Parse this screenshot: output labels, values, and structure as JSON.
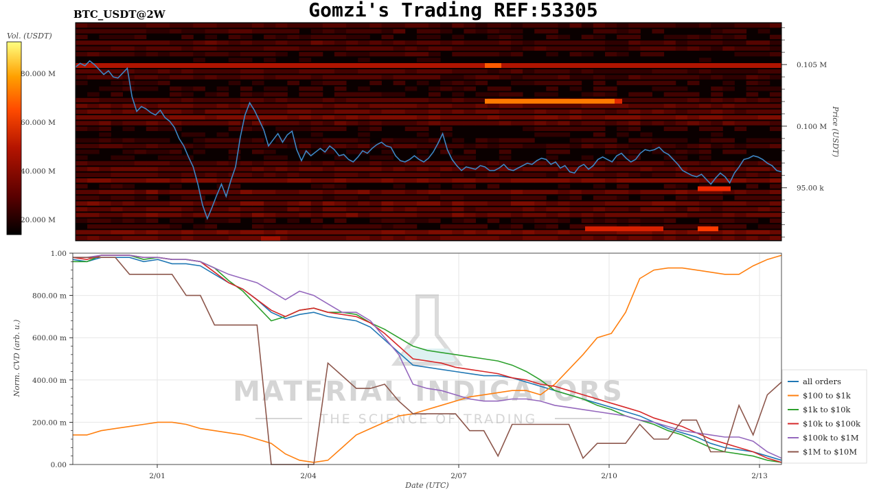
{
  "header": {
    "title": "Gomzi's Trading REF:53305",
    "pair_label": "BTC_USDT@2W"
  },
  "watermark": {
    "brand": "MATERIAL INDICATORS",
    "tagline": "THE SCIENCE OF TRADING"
  },
  "colorbar": {
    "label": "Vol. (USDT)",
    "ticks": [
      "20.000 M",
      "40.000 M",
      "60.000 M",
      "80.000 M"
    ]
  },
  "chart_data": [
    {
      "type": "heatmap",
      "title": "BTC_USDT@2W",
      "ylabel": "Price (USDT)",
      "ylim": [
        90700,
        108400
      ],
      "y_ticks": [
        "95.00 k",
        "0.100 M",
        "0.105 M"
      ],
      "colorscale": [
        "#000000",
        "#5a0000",
        "#b41400",
        "#ff4b00",
        "#ffa000",
        "#ffff80"
      ],
      "price_series": {
        "name": "price",
        "color": "#3d87c6",
        "values": [
          104800,
          105100,
          104900,
          105300,
          105000,
          104600,
          104200,
          104500,
          104000,
          103900,
          104300,
          104700,
          102400,
          101200,
          101600,
          101400,
          101100,
          100900,
          101300,
          100700,
          100400,
          99900,
          99000,
          98400,
          97500,
          96700,
          95300,
          93600,
          92500,
          93400,
          94400,
          95300,
          94300,
          95600,
          96700,
          99100,
          100900,
          101900,
          101300,
          100500,
          99700,
          98400,
          98900,
          99400,
          98700,
          99300,
          99600,
          98100,
          97200,
          98000,
          97600,
          97900,
          98200,
          97900,
          98400,
          98100,
          97600,
          97700,
          97300,
          97100,
          97500,
          98000,
          97800,
          98200,
          98500,
          98700,
          98400,
          98300,
          97600,
          97200,
          97100,
          97300,
          97600,
          97300,
          97100,
          97400,
          97900,
          98600,
          99400,
          98100,
          97300,
          96800,
          96400,
          96700,
          96600,
          96500,
          96800,
          96700,
          96400,
          96400,
          96600,
          96900,
          96500,
          96400,
          96600,
          96800,
          97000,
          96900,
          97200,
          97400,
          97300,
          96900,
          97100,
          96600,
          96800,
          96300,
          96200,
          96700,
          96900,
          96500,
          96800,
          97300,
          97500,
          97300,
          97100,
          97600,
          97800,
          97400,
          97100,
          97300,
          97800,
          98100,
          98000,
          98100,
          98300,
          97900,
          97700,
          97300,
          96900,
          96400,
          96200,
          96000,
          95900,
          96100,
          95700,
          95300,
          95800,
          96200,
          95900,
          95400,
          96200,
          96700,
          97300,
          97400,
          97600,
          97500,
          97300,
          97000,
          96800,
          96400,
          96300
        ]
      }
    },
    {
      "type": "line",
      "title": "",
      "xlabel": "Date (UTC)",
      "ylabel": "Norm. CVD (arb. u.)",
      "ylim": [
        0,
        1
      ],
      "y_tick_labels": [
        "0.00",
        "200.00 m",
        "400.00 m",
        "600.00 m",
        "800.00 m",
        "1.00"
      ],
      "x_tick_labels": [
        "2/01",
        "2/04",
        "2/07",
        "2/10",
        "2/13"
      ],
      "legend_position": "right",
      "series": [
        {
          "name": "all orders",
          "color": "#1f77b4",
          "values": [
            0.97,
            0.96,
            0.98,
            0.98,
            0.98,
            0.96,
            0.97,
            0.95,
            0.95,
            0.94,
            0.9,
            0.86,
            0.83,
            0.78,
            0.72,
            0.69,
            0.71,
            0.72,
            0.7,
            0.69,
            0.68,
            0.65,
            0.59,
            0.53,
            0.47,
            0.46,
            0.45,
            0.44,
            0.43,
            0.42,
            0.42,
            0.41,
            0.39,
            0.37,
            0.35,
            0.33,
            0.31,
            0.29,
            0.27,
            0.25,
            0.23,
            0.2,
            0.17,
            0.15,
            0.13,
            0.1,
            0.08,
            0.07,
            0.06,
            0.04,
            0.02
          ]
        },
        {
          "name": "$100 to $1k",
          "color": "#ff7f0e",
          "values": [
            0.14,
            0.14,
            0.16,
            0.17,
            0.18,
            0.19,
            0.2,
            0.2,
            0.19,
            0.17,
            0.16,
            0.15,
            0.14,
            0.12,
            0.1,
            0.05,
            0.02,
            0.01,
            0.02,
            0.08,
            0.14,
            0.17,
            0.2,
            0.23,
            0.24,
            0.26,
            0.28,
            0.3,
            0.32,
            0.33,
            0.34,
            0.35,
            0.35,
            0.33,
            0.38,
            0.45,
            0.52,
            0.6,
            0.62,
            0.72,
            0.88,
            0.92,
            0.93,
            0.93,
            0.92,
            0.91,
            0.9,
            0.9,
            0.94,
            0.97,
            0.99
          ]
        },
        {
          "name": "$1k to $10k",
          "color": "#2ca02c",
          "values": [
            0.96,
            0.96,
            0.99,
            0.99,
            0.99,
            0.97,
            0.98,
            0.97,
            0.97,
            0.96,
            0.93,
            0.87,
            0.82,
            0.75,
            0.68,
            0.7,
            0.73,
            0.74,
            0.72,
            0.72,
            0.71,
            0.67,
            0.64,
            0.6,
            0.56,
            0.54,
            0.53,
            0.52,
            0.51,
            0.5,
            0.49,
            0.47,
            0.44,
            0.4,
            0.35,
            0.33,
            0.31,
            0.28,
            0.26,
            0.23,
            0.21,
            0.19,
            0.16,
            0.14,
            0.11,
            0.08,
            0.06,
            0.05,
            0.04,
            0.02,
            0.01
          ]
        },
        {
          "name": "$10k to $100k",
          "color": "#d62728",
          "values": [
            0.98,
            0.97,
            0.99,
            0.99,
            0.99,
            0.98,
            0.98,
            0.97,
            0.97,
            0.96,
            0.91,
            0.86,
            0.83,
            0.78,
            0.73,
            0.7,
            0.73,
            0.74,
            0.72,
            0.71,
            0.7,
            0.67,
            0.62,
            0.56,
            0.5,
            0.49,
            0.48,
            0.46,
            0.45,
            0.44,
            0.43,
            0.41,
            0.4,
            0.38,
            0.37,
            0.35,
            0.33,
            0.31,
            0.29,
            0.27,
            0.25,
            0.22,
            0.2,
            0.18,
            0.15,
            0.12,
            0.1,
            0.08,
            0.06,
            0.03,
            0.01
          ]
        },
        {
          "name": "$100k to $1M",
          "color": "#9467bd",
          "values": [
            0.98,
            0.98,
            0.99,
            0.99,
            0.99,
            0.98,
            0.98,
            0.97,
            0.97,
            0.96,
            0.93,
            0.9,
            0.88,
            0.86,
            0.82,
            0.78,
            0.82,
            0.8,
            0.76,
            0.72,
            0.72,
            0.68,
            0.6,
            0.52,
            0.38,
            0.36,
            0.35,
            0.33,
            0.31,
            0.3,
            0.3,
            0.31,
            0.31,
            0.3,
            0.28,
            0.27,
            0.26,
            0.25,
            0.24,
            0.23,
            0.21,
            0.2,
            0.18,
            0.16,
            0.15,
            0.14,
            0.13,
            0.13,
            0.11,
            0.06,
            0.03
          ]
        },
        {
          "name": "$1M to $10M",
          "color": "#8c564b",
          "values": [
            0.98,
            0.98,
            0.98,
            0.98,
            0.9,
            0.9,
            0.9,
            0.9,
            0.8,
            0.8,
            0.66,
            0.66,
            0.66,
            0.66,
            0.0,
            0.0,
            0.0,
            0.0,
            0.48,
            0.42,
            0.36,
            0.36,
            0.38,
            0.3,
            0.24,
            0.24,
            0.24,
            0.24,
            0.16,
            0.16,
            0.04,
            0.19,
            0.19,
            0.19,
            0.19,
            0.19,
            0.03,
            0.1,
            0.1,
            0.1,
            0.19,
            0.12,
            0.12,
            0.21,
            0.21,
            0.06,
            0.06,
            0.28,
            0.14,
            0.33,
            0.39
          ]
        }
      ]
    }
  ]
}
